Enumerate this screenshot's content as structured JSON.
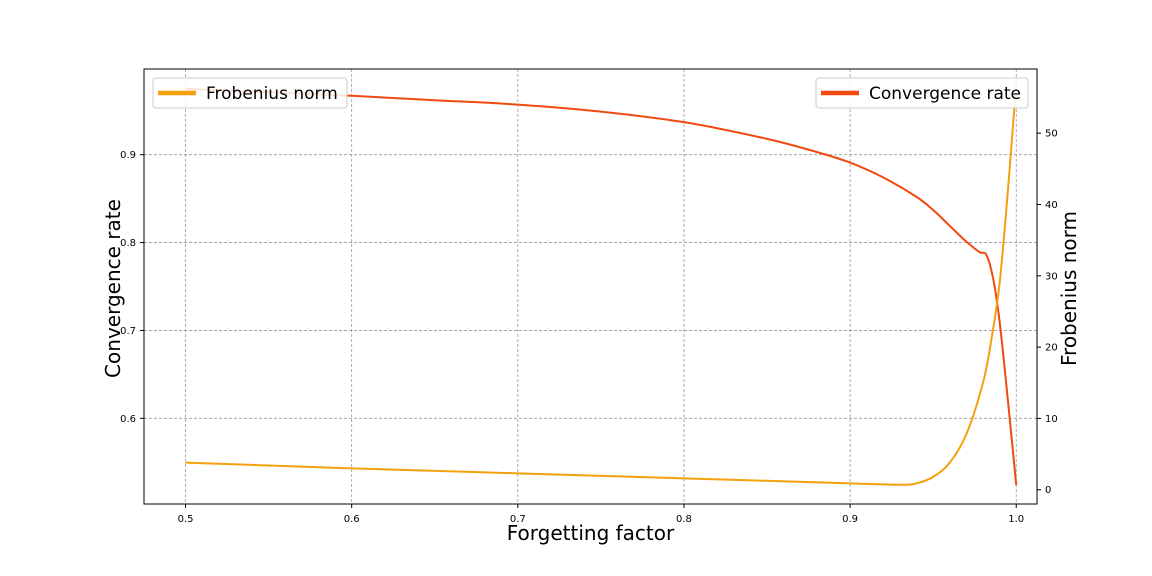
{
  "chart_data": {
    "type": "line",
    "xlabel": "Forgetting factor",
    "xlim": [
      0.475,
      1.0125
    ],
    "x_ticks": [
      "0.5",
      "0.6",
      "0.7",
      "0.8",
      "0.9",
      "1.0"
    ],
    "grid": true,
    "left_axis": {
      "label": "Convergence rate",
      "ylim": [
        0.5025,
        0.9975
      ],
      "ticks": [
        "0.6",
        "0.7",
        "0.8",
        "0.9"
      ]
    },
    "right_axis": {
      "label": "Frobenius norm",
      "ylim": [
        -2,
        59
      ],
      "ticks": [
        "0",
        "10",
        "20",
        "30",
        "40",
        "50"
      ]
    },
    "series": [
      {
        "name": "Convergence rate",
        "axis": "left",
        "color": "#f04a10",
        "legend_position": "top-right",
        "points": [
          [
            0.5,
            0.975
          ],
          [
            0.55,
            0.971
          ],
          [
            0.6,
            0.967
          ],
          [
            0.65,
            0.962
          ],
          [
            0.7,
            0.957
          ],
          [
            0.75,
            0.949
          ],
          [
            0.8,
            0.937
          ],
          [
            0.85,
            0.918
          ],
          [
            0.88,
            0.903
          ],
          [
            0.9,
            0.891
          ],
          [
            0.92,
            0.874
          ],
          [
            0.94,
            0.852
          ],
          [
            0.95,
            0.837
          ],
          [
            0.96,
            0.819
          ],
          [
            0.97,
            0.801
          ],
          [
            0.978,
            0.789
          ],
          [
            0.982,
            0.786
          ],
          [
            0.986,
            0.76
          ],
          [
            0.99,
            0.71
          ],
          [
            0.995,
            0.62
          ],
          [
            1.0,
            0.524
          ]
        ]
      },
      {
        "name": "Frobenius norm",
        "axis": "right",
        "color": "#f5a00f",
        "legend_position": "top-left",
        "points": [
          [
            0.5,
            3.8
          ],
          [
            0.6,
            3.0
          ],
          [
            0.7,
            2.3
          ],
          [
            0.8,
            1.6
          ],
          [
            0.9,
            0.9
          ],
          [
            0.93,
            0.7
          ],
          [
            0.94,
            0.9
          ],
          [
            0.95,
            1.8
          ],
          [
            0.96,
            3.8
          ],
          [
            0.97,
            7.8
          ],
          [
            0.98,
            15.0
          ],
          [
            0.985,
            21.0
          ],
          [
            0.99,
            29.0
          ],
          [
            0.995,
            42.0
          ],
          [
            1.0,
            57.0
          ]
        ]
      }
    ]
  }
}
